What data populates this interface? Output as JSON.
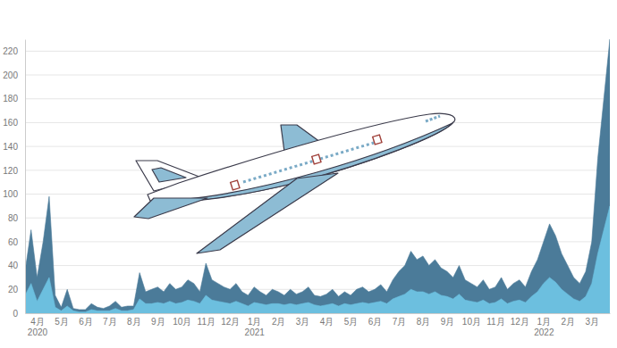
{
  "chart_data": {
    "type": "area",
    "categories": [
      null,
      null,
      "4月\n2020",
      null,
      null,
      null,
      "5月",
      null,
      null,
      null,
      "6月",
      null,
      null,
      null,
      "7月",
      null,
      null,
      null,
      "8月",
      null,
      null,
      null,
      "9月",
      null,
      null,
      null,
      "10月",
      null,
      null,
      null,
      "11月",
      null,
      null,
      null,
      "12月",
      null,
      null,
      null,
      "1月\n2021",
      null,
      null,
      null,
      "2月",
      null,
      null,
      null,
      "3月",
      null,
      null,
      null,
      "4月",
      null,
      null,
      null,
      "5月",
      null,
      null,
      null,
      "6月",
      null,
      null,
      null,
      "7月",
      null,
      null,
      null,
      "8月",
      null,
      null,
      null,
      "9月",
      null,
      null,
      null,
      "10月",
      null,
      null,
      null,
      "11月",
      null,
      null,
      null,
      "12月",
      null,
      null,
      null,
      "1月\n2022",
      null,
      null,
      null,
      "2月",
      null,
      null,
      null,
      "3月",
      null,
      null,
      null
    ],
    "series": [
      {
        "color": "#4b7b99",
        "values": [
          35,
          70,
          30,
          60,
          98,
          15,
          5,
          20,
          4,
          3,
          3,
          8,
          5,
          4,
          6,
          10,
          5,
          6,
          6,
          34,
          18,
          20,
          22,
          18,
          25,
          20,
          22,
          28,
          25,
          18,
          42,
          28,
          25,
          22,
          20,
          25,
          18,
          15,
          22,
          18,
          15,
          20,
          18,
          15,
          20,
          16,
          18,
          22,
          15,
          14,
          16,
          20,
          14,
          18,
          15,
          20,
          22,
          18,
          20,
          24,
          18,
          28,
          35,
          40,
          52,
          45,
          48,
          40,
          45,
          38,
          35,
          30,
          40,
          28,
          25,
          22,
          28,
          20,
          22,
          30,
          20,
          25,
          28,
          22,
          35,
          45,
          60,
          75,
          65,
          50,
          40,
          30,
          25,
          35,
          60,
          130,
          180,
          230
        ]
      },
      {
        "color": "#6cbfdf",
        "values": [
          15,
          25,
          10,
          20,
          30,
          5,
          2,
          6,
          2,
          1,
          1,
          3,
          2,
          2,
          2,
          4,
          2,
          2,
          3,
          12,
          8,
          8,
          9,
          8,
          10,
          8,
          9,
          11,
          10,
          8,
          15,
          11,
          10,
          9,
          8,
          10,
          8,
          6,
          9,
          8,
          7,
          8,
          8,
          7,
          8,
          7,
          8,
          9,
          7,
          6,
          7,
          8,
          6,
          8,
          7,
          8,
          9,
          8,
          9,
          10,
          8,
          12,
          14,
          16,
          20,
          18,
          18,
          16,
          18,
          15,
          14,
          12,
          16,
          11,
          10,
          9,
          11,
          8,
          9,
          12,
          8,
          10,
          11,
          9,
          14,
          18,
          25,
          30,
          26,
          20,
          16,
          12,
          10,
          14,
          25,
          50,
          70,
          90
        ]
      }
    ],
    "ylim": [
      0,
      230
    ],
    "yticks": [
      0,
      20,
      40,
      60,
      80,
      100,
      120,
      140,
      160,
      180,
      200,
      220
    ],
    "grid": true
  }
}
